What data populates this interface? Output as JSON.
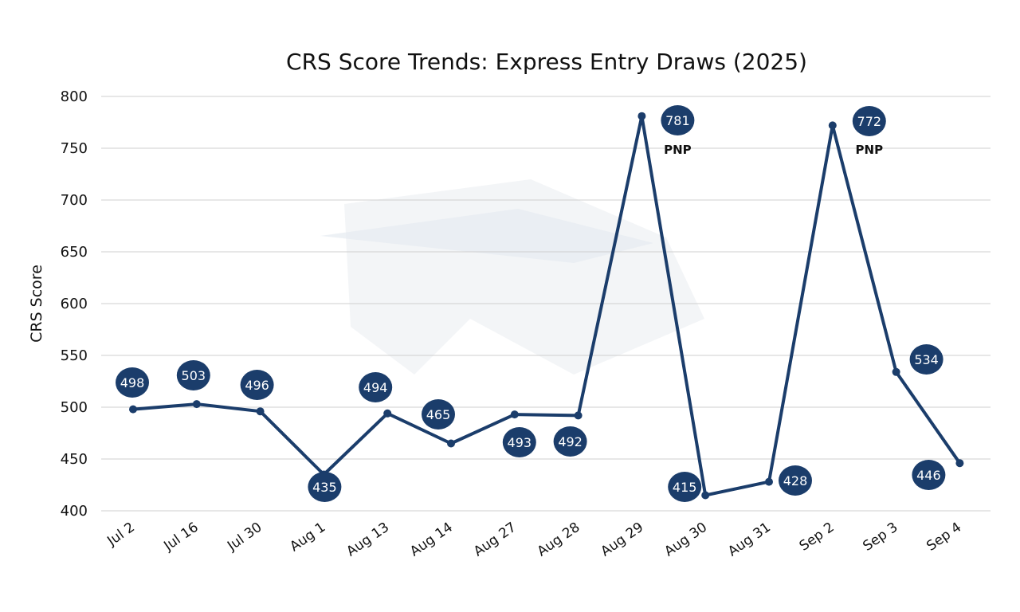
{
  "colors": {
    "line": "#1b3d6b",
    "bubble": "#1b3d6b",
    "grid": "#cfcfcf",
    "watermark": "#eef1f4"
  },
  "chart_data": {
    "type": "line",
    "title": "CRS Score Trends: Express Entry Draws (2025)",
    "xlabel": "",
    "ylabel": "CRS Score",
    "ylim": [
      400,
      800
    ],
    "yticks": [
      400,
      450,
      500,
      550,
      600,
      650,
      700,
      750,
      800
    ],
    "grid": true,
    "categories": [
      "Jul 2",
      "Jul 16",
      "Jul 30",
      "Aug 1",
      "Aug 13",
      "Aug 14",
      "Aug 27",
      "Aug 28",
      "Aug 29",
      "Aug 30",
      "Aug 31",
      "Sep 2",
      "Sep 3",
      "Sep 4"
    ],
    "series": [
      {
        "values": [
          498,
          503,
          496,
          435,
          494,
          465,
          493,
          492,
          781,
          415,
          428,
          772,
          534,
          446
        ]
      }
    ],
    "annotations": [
      {
        "category": "Aug 29",
        "text": "PNP"
      },
      {
        "category": "Sep 2",
        "text": "PNP"
      }
    ]
  }
}
